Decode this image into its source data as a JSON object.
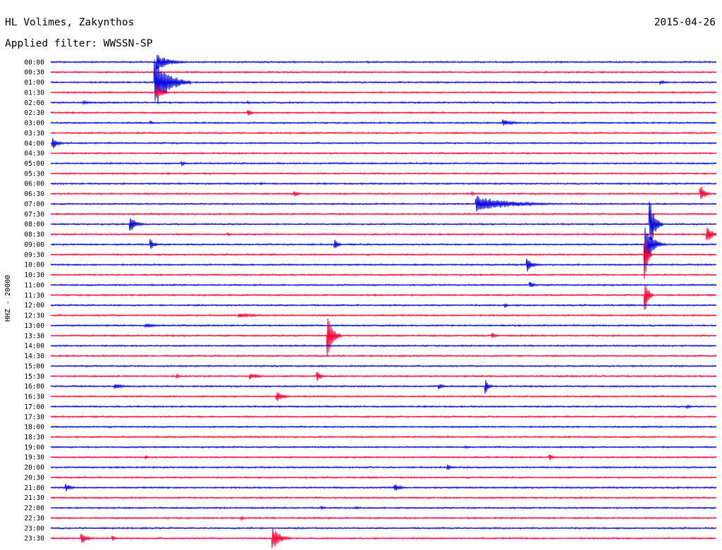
{
  "header": {
    "station": "HL Volimes, Zakynthos",
    "date": "2015-04-26",
    "filter": "Applied filter: WWSSN-SP"
  },
  "colors": {
    "blue": "#0000dd",
    "red": "#ff0033"
  },
  "chart_data": {
    "type": "line",
    "title": "HL Volimes, Zakynthos",
    "subtitle": "Applied filter: WWSSN-SP",
    "ylabel": "HHZ - 20000",
    "xlabel": "",
    "x_unit": "minutes within trace (0-30)",
    "grid": false,
    "legend": "none",
    "rows": [
      "00:00",
      "00:30",
      "01:00",
      "01:30",
      "02:00",
      "02:30",
      "03:00",
      "03:30",
      "04:00",
      "04:30",
      "05:00",
      "05:30",
      "06:00",
      "06:30",
      "07:00",
      "07:30",
      "08:00",
      "08:30",
      "09:00",
      "09:30",
      "10:00",
      "10:30",
      "11:00",
      "11:30",
      "12:00",
      "12:30",
      "13:00",
      "13:30",
      "14:00",
      "14:30",
      "15:00",
      "15:30",
      "16:00",
      "16:30",
      "17:00",
      "17:30",
      "18:00",
      "18:30",
      "19:00",
      "19:30",
      "20:00",
      "20:30",
      "21:00",
      "21:30",
      "22:00",
      "22:30",
      "23:00",
      "23:30"
    ],
    "row_colors": [
      "blue",
      "red"
    ],
    "events": [
      {
        "row": "00:00",
        "minute": 4.8,
        "amplitude": 12,
        "duration": 1.5
      },
      {
        "row": "01:00",
        "minute": 4.7,
        "amplitude": 40,
        "duration": 1.6
      },
      {
        "row": "01:00",
        "minute": 27.5,
        "amplitude": 3,
        "duration": 0.8
      },
      {
        "row": "01:30",
        "minute": 4.8,
        "amplitude": 12,
        "duration": 0.6
      },
      {
        "row": "02:00",
        "minute": 1.5,
        "amplitude": 2,
        "duration": 1.5
      },
      {
        "row": "02:00",
        "minute": 8.9,
        "amplitude": 2,
        "duration": 0.4
      },
      {
        "row": "02:30",
        "minute": 8.9,
        "amplitude": 5,
        "duration": 0.5
      },
      {
        "row": "03:00",
        "minute": 4.5,
        "amplitude": 3,
        "duration": 0.4
      },
      {
        "row": "03:00",
        "minute": 20.4,
        "amplitude": 5,
        "duration": 1.2
      },
      {
        "row": "04:00",
        "minute": 0.1,
        "amplitude": 9,
        "duration": 0.6
      },
      {
        "row": "05:00",
        "minute": 5.9,
        "amplitude": 4,
        "duration": 0.4
      },
      {
        "row": "05:30",
        "minute": 5.3,
        "amplitude": 2,
        "duration": 0.3
      },
      {
        "row": "06:00",
        "minute": 9.5,
        "amplitude": 2,
        "duration": 0.3
      },
      {
        "row": "06:30",
        "minute": 11.0,
        "amplitude": 4,
        "duration": 0.5
      },
      {
        "row": "06:30",
        "minute": 19.0,
        "amplitude": 3,
        "duration": 0.3
      },
      {
        "row": "06:30",
        "minute": 29.3,
        "amplitude": 14,
        "duration": 0.5
      },
      {
        "row": "07:00",
        "minute": 19.2,
        "amplitude": 12,
        "duration": 4.0
      },
      {
        "row": "08:00",
        "minute": 3.6,
        "amplitude": 12,
        "duration": 0.7
      },
      {
        "row": "08:00",
        "minute": 27.0,
        "amplitude": 40,
        "duration": 0.6
      },
      {
        "row": "08:30",
        "minute": 8.0,
        "amplitude": 3,
        "duration": 0.3
      },
      {
        "row": "08:30",
        "minute": 29.6,
        "amplitude": 11,
        "duration": 0.7
      },
      {
        "row": "09:00",
        "minute": 4.5,
        "amplitude": 8,
        "duration": 0.5
      },
      {
        "row": "09:00",
        "minute": 12.8,
        "amplitude": 8,
        "duration": 0.4
      },
      {
        "row": "09:00",
        "minute": 26.8,
        "amplitude": 28,
        "duration": 0.9
      },
      {
        "row": "09:30",
        "minute": 26.8,
        "amplitude": 35,
        "duration": 0.3
      },
      {
        "row": "10:00",
        "minute": 21.5,
        "amplitude": 10,
        "duration": 0.6
      },
      {
        "row": "11:00",
        "minute": 21.6,
        "amplitude": 5,
        "duration": 0.5
      },
      {
        "row": "11:30",
        "minute": 26.8,
        "amplitude": 24,
        "duration": 0.4
      },
      {
        "row": "12:00",
        "minute": 20.5,
        "amplitude": 4,
        "duration": 0.3
      },
      {
        "row": "12:30",
        "minute": 8.5,
        "amplitude": 3,
        "duration": 2.5
      },
      {
        "row": "13:00",
        "minute": 4.3,
        "amplitude": 3,
        "duration": 1.3
      },
      {
        "row": "13:30",
        "minute": 12.5,
        "amplitude": 34,
        "duration": 0.6
      },
      {
        "row": "13:30",
        "minute": 19.9,
        "amplitude": 5,
        "duration": 0.4
      },
      {
        "row": "15:30",
        "minute": 5.7,
        "amplitude": 4,
        "duration": 0.3
      },
      {
        "row": "15:30",
        "minute": 9.0,
        "amplitude": 5,
        "duration": 1.0
      },
      {
        "row": "15:30",
        "minute": 12.0,
        "amplitude": 10,
        "duration": 0.4
      },
      {
        "row": "16:00",
        "minute": 2.9,
        "amplitude": 4,
        "duration": 1.0
      },
      {
        "row": "16:00",
        "minute": 17.5,
        "amplitude": 4,
        "duration": 0.6
      },
      {
        "row": "16:00",
        "minute": 19.6,
        "amplitude": 11,
        "duration": 0.4
      },
      {
        "row": "16:30",
        "minute": 10.2,
        "amplitude": 8,
        "duration": 0.7
      },
      {
        "row": "17:00",
        "minute": 28.7,
        "amplitude": 3,
        "duration": 0.6
      },
      {
        "row": "19:00",
        "minute": 18.7,
        "amplitude": 2,
        "duration": 0.6
      },
      {
        "row": "19:30",
        "minute": 22.5,
        "amplitude": 5,
        "duration": 0.4
      },
      {
        "row": "19:30",
        "minute": 4.3,
        "amplitude": 3,
        "duration": 0.3
      },
      {
        "row": "20:00",
        "minute": 17.9,
        "amplitude": 4,
        "duration": 0.4
      },
      {
        "row": "21:00",
        "minute": 0.7,
        "amplitude": 6,
        "duration": 0.6
      },
      {
        "row": "21:00",
        "minute": 15.5,
        "amplitude": 6,
        "duration": 0.7
      },
      {
        "row": "22:00",
        "minute": 12.2,
        "amplitude": 3,
        "duration": 0.5
      },
      {
        "row": "22:00",
        "minute": 13.8,
        "amplitude": 2,
        "duration": 0.4
      },
      {
        "row": "22:30",
        "minute": 8.6,
        "amplitude": 3,
        "duration": 0.4
      },
      {
        "row": "23:30",
        "minute": 1.4,
        "amplitude": 10,
        "duration": 0.6
      },
      {
        "row": "23:30",
        "minute": 10.0,
        "amplitude": 18,
        "duration": 0.9
      },
      {
        "row": "23:30",
        "minute": 2.8,
        "amplitude": 4,
        "duration": 0.4
      }
    ]
  }
}
